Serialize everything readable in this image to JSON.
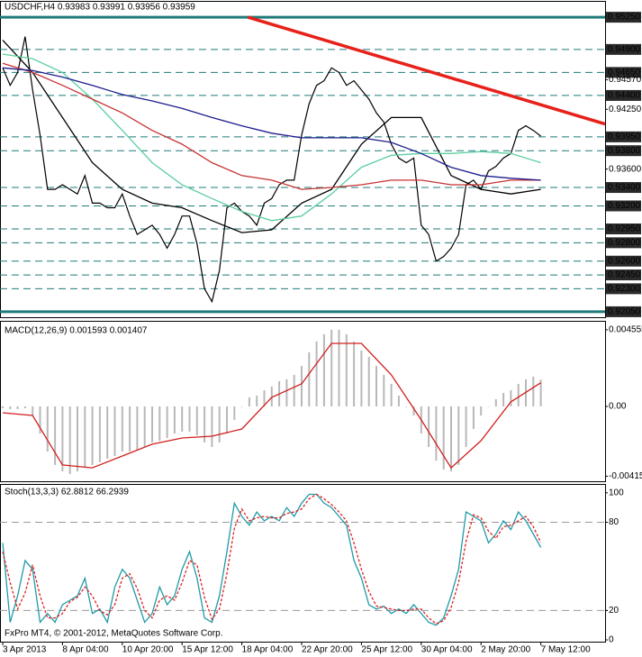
{
  "chart_data": [
    {
      "type": "line",
      "title": "USDCHF,H4  0.93983 0.93991 0.93956 0.93959",
      "xlim": [
        -0.36,
        80.6
      ],
      "ylim": [
        0.9201,
        0.953
      ],
      "yticks": [
        {
          "value": 0.9457,
          "label": "0.94570"
        },
        {
          "value": 0.9425,
          "label": "0.94250"
        },
        {
          "value": 0.936,
          "label": "0.93600"
        }
      ],
      "levels": [
        {
          "value": 0.9525,
          "label": "0.95250"
        },
        {
          "value": 0.949,
          "label": "0.94900"
        },
        {
          "value": 0.9465,
          "label": "0.94650"
        },
        {
          "value": 0.944,
          "label": "0.94400"
        },
        {
          "value": 0.9395,
          "label": "0.93950"
        },
        {
          "value": 0.938,
          "label": "0.93800"
        },
        {
          "value": 0.934,
          "label": "0.93400"
        },
        {
          "value": 0.932,
          "label": "0.93200"
        },
        {
          "value": 0.9295,
          "label": "0.92950"
        },
        {
          "value": 0.928,
          "label": "0.92800"
        },
        {
          "value": 0.926,
          "label": "0.92600"
        },
        {
          "value": 0.9245,
          "label": "0.92450"
        },
        {
          "value": 0.923,
          "label": "0.92300"
        },
        {
          "value": 0.9205,
          "label": "0.92050"
        }
      ],
      "level_color": "#1f7a7a",
      "series": [
        {
          "color": "#000000",
          "values": [
            0.947,
            0.9451,
            0.9465,
            0.9504,
            0.9446,
            0.9397,
            0.9338,
            0.9338,
            0.9343,
            0.9338,
            0.9333,
            0.9353,
            0.9323,
            0.9323,
            0.9318,
            0.9318,
            0.9333,
            0.9309,
            0.9289,
            0.9294,
            0.9299,
            0.9289,
            0.9274,
            0.9289,
            0.9309,
            0.9309,
            0.9279,
            0.923,
            0.9216,
            0.925,
            0.9318,
            0.9323,
            0.9314,
            0.9309,
            0.9299,
            0.9323,
            0.9328,
            0.9343,
            0.9348,
            0.9348,
            0.9397,
            0.9431,
            0.9451,
            0.9456,
            0.947,
            0.9465,
            0.9451,
            0.9456,
            0.9446,
            0.9436,
            0.9421,
            0.9411,
            0.9387,
            0.9372,
            0.9367,
            0.9372,
            0.9299,
            0.9289,
            0.926,
            0.9265,
            0.9274,
            0.9289,
            0.9343,
            0.9348,
            0.9338,
            0.9358,
            0.9363,
            0.9372,
            0.9377,
            0.9402,
            0.9407,
            0.9402,
            0.93959
          ]
        },
        {
          "color": "#000000",
          "x": [
            0,
            4,
            8,
            12,
            16,
            20,
            24,
            28,
            32,
            36,
            40,
            44,
            48,
            52,
            56,
            60,
            64,
            68,
            72
          ],
          "values": [
            0.95,
            0.9465,
            0.9416,
            0.9367,
            0.9338,
            0.9323,
            0.9318,
            0.9304,
            0.9291,
            0.9294,
            0.9323,
            0.9338,
            0.9387,
            0.9416,
            0.9416,
            0.9353,
            0.9338,
            0.9333,
            0.9338
          ]
        },
        {
          "color": "#5ccfa0",
          "x": [
            0,
            4,
            8,
            12,
            16,
            20,
            24,
            28,
            32,
            36,
            40,
            44,
            48,
            52,
            56,
            60,
            64,
            68,
            72
          ],
          "values": [
            0.9485,
            0.948,
            0.9465,
            0.9436,
            0.9402,
            0.9367,
            0.9343,
            0.9328,
            0.9314,
            0.9304,
            0.9309,
            0.9333,
            0.9362,
            0.9375,
            0.9377,
            0.9377,
            0.9379,
            0.9377,
            0.9367
          ]
        },
        {
          "color": "#c83232",
          "x": [
            0,
            4,
            8,
            12,
            16,
            20,
            24,
            28,
            32,
            36,
            40,
            44,
            48,
            52,
            56,
            60,
            64,
            68,
            72
          ],
          "values": [
            0.9475,
            0.9465,
            0.9451,
            0.9436,
            0.9421,
            0.9402,
            0.9387,
            0.9367,
            0.9353,
            0.9348,
            0.9338,
            0.934,
            0.9343,
            0.9348,
            0.9348,
            0.9343,
            0.9343,
            0.9348,
            0.9348
          ]
        },
        {
          "color": "#1c1c8c",
          "x": [
            0,
            4,
            8,
            12,
            16,
            20,
            24,
            28,
            32,
            36,
            40,
            44,
            48,
            52,
            56,
            60,
            64,
            68,
            72
          ],
          "values": [
            0.947,
            0.9467,
            0.946,
            0.9451,
            0.9441,
            0.9434,
            0.9426,
            0.9416,
            0.9407,
            0.9399,
            0.9394,
            0.9394,
            0.9394,
            0.9389,
            0.9377,
            0.9362,
            0.9353,
            0.935,
            0.9348
          ]
        }
      ],
      "trendline": {
        "x": [
          32.8,
          80.6
        ],
        "values": [
          0.9525,
          0.9409
        ],
        "color": "#e8201a"
      }
    },
    {
      "type": "bar",
      "title": "MACD(12,26,9) 0.001593 0.001407",
      "xlim": [
        -0.36,
        80.6
      ],
      "ylim": [
        -0.00445,
        0.00482
      ],
      "yticks": [
        0.004555,
        {
          "value": 0,
          "label": "0.00"
        },
        -0.00415
      ],
      "series": [
        {
          "type": "bar",
          "color": "#b8b8b8",
          "values": [
            -0.00011,
            -0.00016,
            -0.00016,
            -0.00011,
            -0.00054,
            -0.00161,
            -0.00268,
            -0.00348,
            -0.00386,
            -0.00402,
            -0.00386,
            -0.00365,
            -0.00348,
            -0.00332,
            -0.00311,
            -0.00295,
            -0.00268,
            -0.00268,
            -0.00257,
            -0.00241,
            -0.00214,
            -0.00204,
            -0.00188,
            -0.00161,
            -0.0015,
            -0.0015,
            -0.00172,
            -0.00214,
            -0.00241,
            -0.00214,
            -0.00161,
            -0.0008,
            0,
            0.00054,
            0.00064,
            0.00096,
            0.00118,
            0.0015,
            0.00161,
            0.00188,
            0.00241,
            0.00322,
            0.00386,
            0.00429,
            0.00456,
            0.00456,
            0.00429,
            0.00386,
            0.00332,
            0.00295,
            0.00241,
            0.00188,
            0.00134,
            0.00064,
            0,
            -0.00054,
            -0.00161,
            -0.00241,
            -0.00322,
            -0.00375,
            -0.00386,
            -0.00348,
            -0.00241,
            -0.00134,
            -0.00054,
            0,
            0.00043,
            0.0008,
            0.00096,
            0.00134,
            0.00161,
            0.00177,
            0.001593
          ]
        },
        {
          "type": "line",
          "color": "#d21f1f",
          "x": [
            0,
            4,
            8,
            12,
            16,
            20,
            24,
            28,
            32,
            36,
            40,
            44,
            48,
            52,
            56,
            60,
            64,
            68,
            72
          ],
          "values": [
            -0.00038,
            -0.00054,
            -0.00348,
            -0.00365,
            -0.00295,
            -0.00225,
            -0.00188,
            -0.00177,
            -0.00134,
            0.00054,
            0.00134,
            0.00375,
            0.00375,
            0.00188,
            -0.0008,
            -0.00365,
            -0.00204,
            0.00027,
            0.001407
          ]
        }
      ]
    },
    {
      "type": "line",
      "title": "Stoch(13,3,3) 62.8812 66.2939",
      "xlim": [
        -0.36,
        80.6
      ],
      "ylim": [
        -1.2,
        104.2
      ],
      "yticks": [
        0,
        20,
        80,
        100
      ],
      "levels": [
        20,
        80
      ],
      "level_color": "#9a9a9a",
      "categories": [
        "3 Apr 2013",
        null,
        null,
        null,
        null,
        null,
        null,
        null,
        "8 Apr 04:00",
        null,
        null,
        null,
        null,
        null,
        null,
        null,
        "10 Apr 20:00",
        null,
        null,
        null,
        null,
        null,
        null,
        null,
        "15 Apr 12:00",
        null,
        null,
        null,
        null,
        null,
        null,
        null,
        "18 Apr 04:00",
        null,
        null,
        null,
        null,
        null,
        null,
        null,
        "22 Apr 20:00",
        null,
        null,
        null,
        null,
        null,
        null,
        null,
        "25 Apr 12:00",
        null,
        null,
        null,
        null,
        null,
        null,
        null,
        "30 Apr 04:00",
        null,
        null,
        null,
        null,
        null,
        null,
        null,
        "2 May 20:00",
        null,
        null,
        null,
        null,
        null,
        null,
        null,
        "7 May 12:00"
      ],
      "series": [
        {
          "color": "#1e9aa8",
          "values": [
            66,
            12,
            30,
            54,
            48,
            12,
            18,
            12,
            24,
            27,
            30,
            42,
            18,
            21,
            12,
            36,
            48,
            42,
            27,
            12,
            18,
            36,
            24,
            30,
            48,
            60,
            42,
            15,
            12,
            30,
            60,
            93,
            84,
            78,
            87,
            81,
            84,
            81,
            90,
            84,
            93,
            99,
            99,
            93,
            90,
            84,
            78,
            54,
            42,
            24,
            21,
            23,
            18,
            21,
            18,
            24,
            18,
            12,
            10,
            15,
            30,
            48,
            87,
            84,
            81,
            66,
            72,
            81,
            75,
            87,
            81,
            72,
            62.8812
          ]
        },
        {
          "color": "#e02020",
          "dash": true,
          "values": [
            60,
            39,
            21,
            32,
            51,
            30,
            15,
            15,
            18,
            26,
            29,
            36,
            30,
            20,
            17,
            24,
            42,
            45,
            35,
            20,
            15,
            27,
            30,
            27,
            39,
            54,
            51,
            29,
            14,
            21,
            45,
            76,
            89,
            81,
            83,
            84,
            83,
            83,
            86,
            87,
            89,
            96,
            99,
            96,
            92,
            87,
            81,
            66,
            48,
            33,
            23,
            22,
            21,
            20,
            20,
            21,
            21,
            15,
            11,
            13,
            22,
            39,
            67,
            85,
            83,
            74,
            69,
            77,
            78,
            81,
            84,
            77,
            66.2939
          ]
        }
      ],
      "annotation": "FxPro MT4, © 2001-2012, MetaQuotes Software Corp."
    }
  ]
}
